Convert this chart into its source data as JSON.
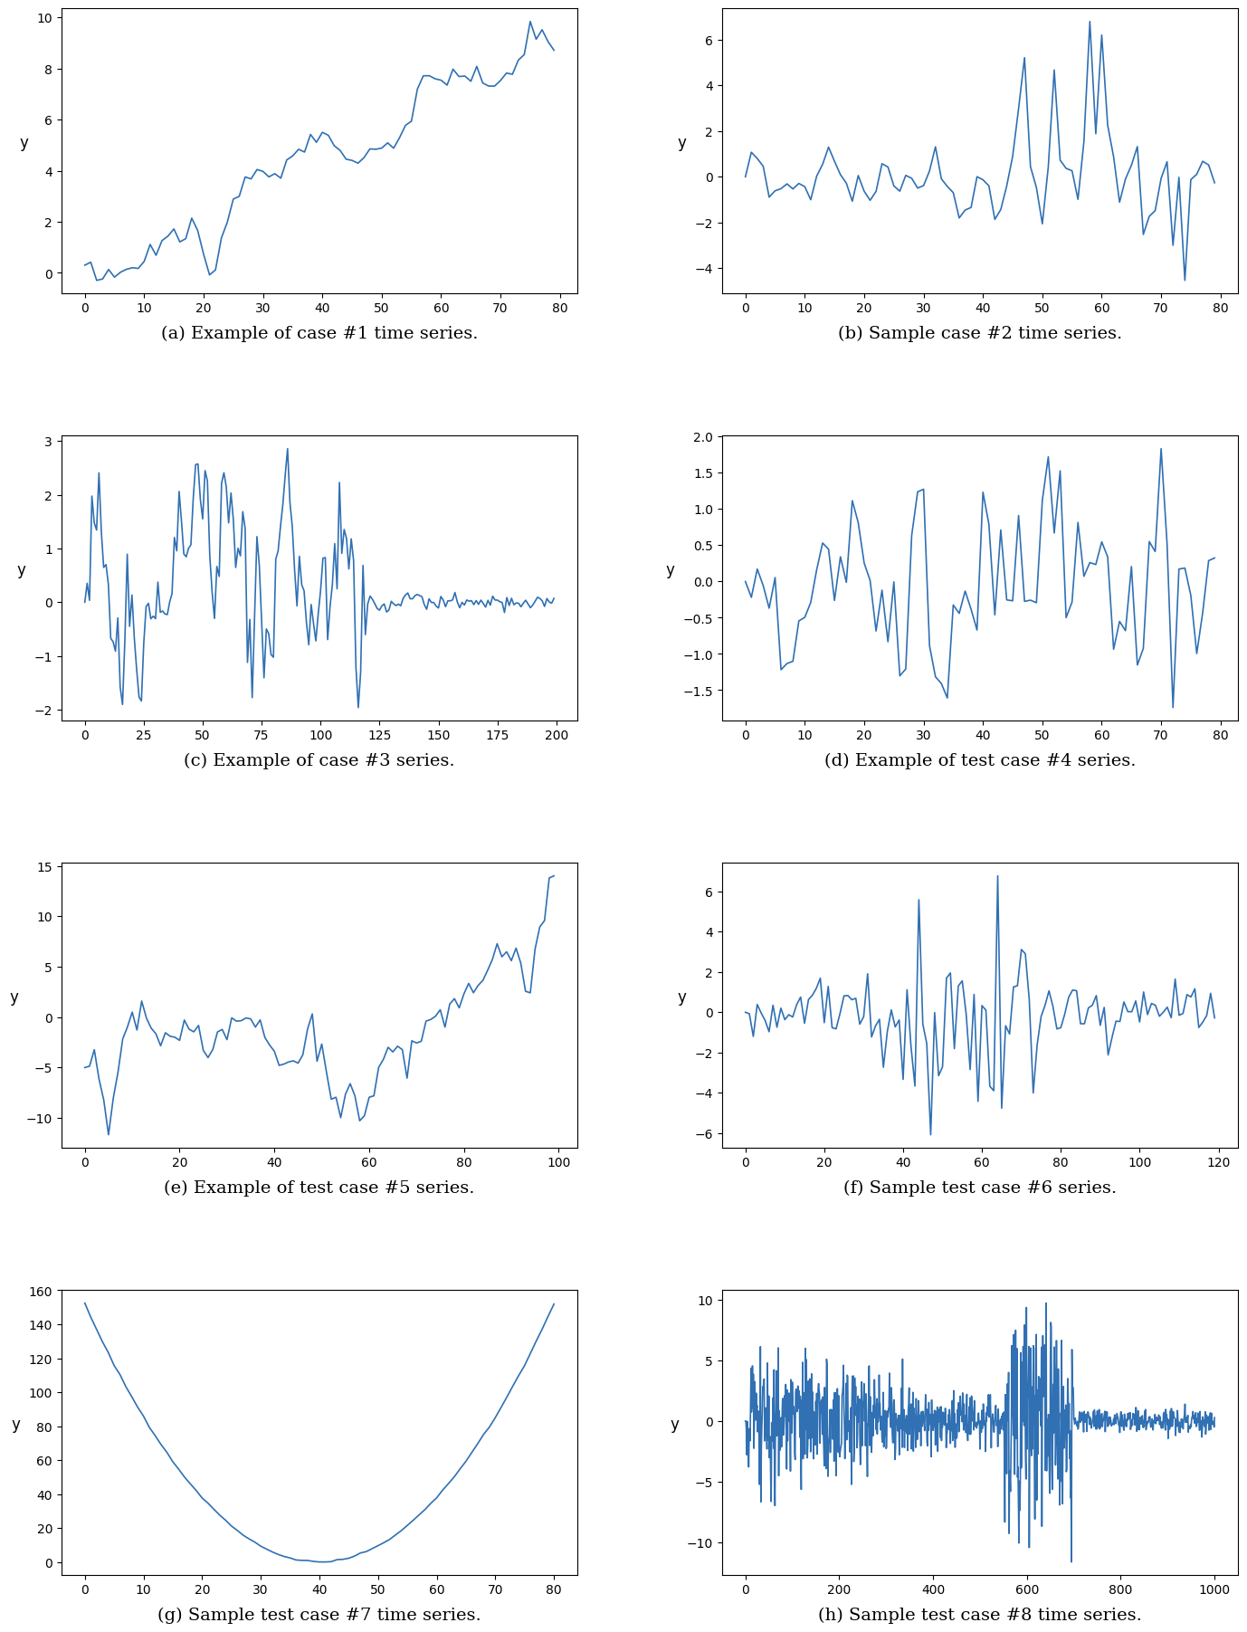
{
  "captions": [
    "(a) Example of case #1 time series.",
    "(b) Sample case #2 time series.",
    "(c) Example of case #3 series.",
    "(d) Example of test case #4 series.",
    "(e) Example of test case #5 series.",
    "(f) Sample test case #6 series.",
    "(g) Sample test case #7 time series.",
    "(h) Sample test case #8 time series."
  ],
  "line_color": "#3070b3",
  "line_width": 1.2,
  "fig_bg": "#ffffff",
  "caption_fontsize": 14,
  "ylabel": "y"
}
